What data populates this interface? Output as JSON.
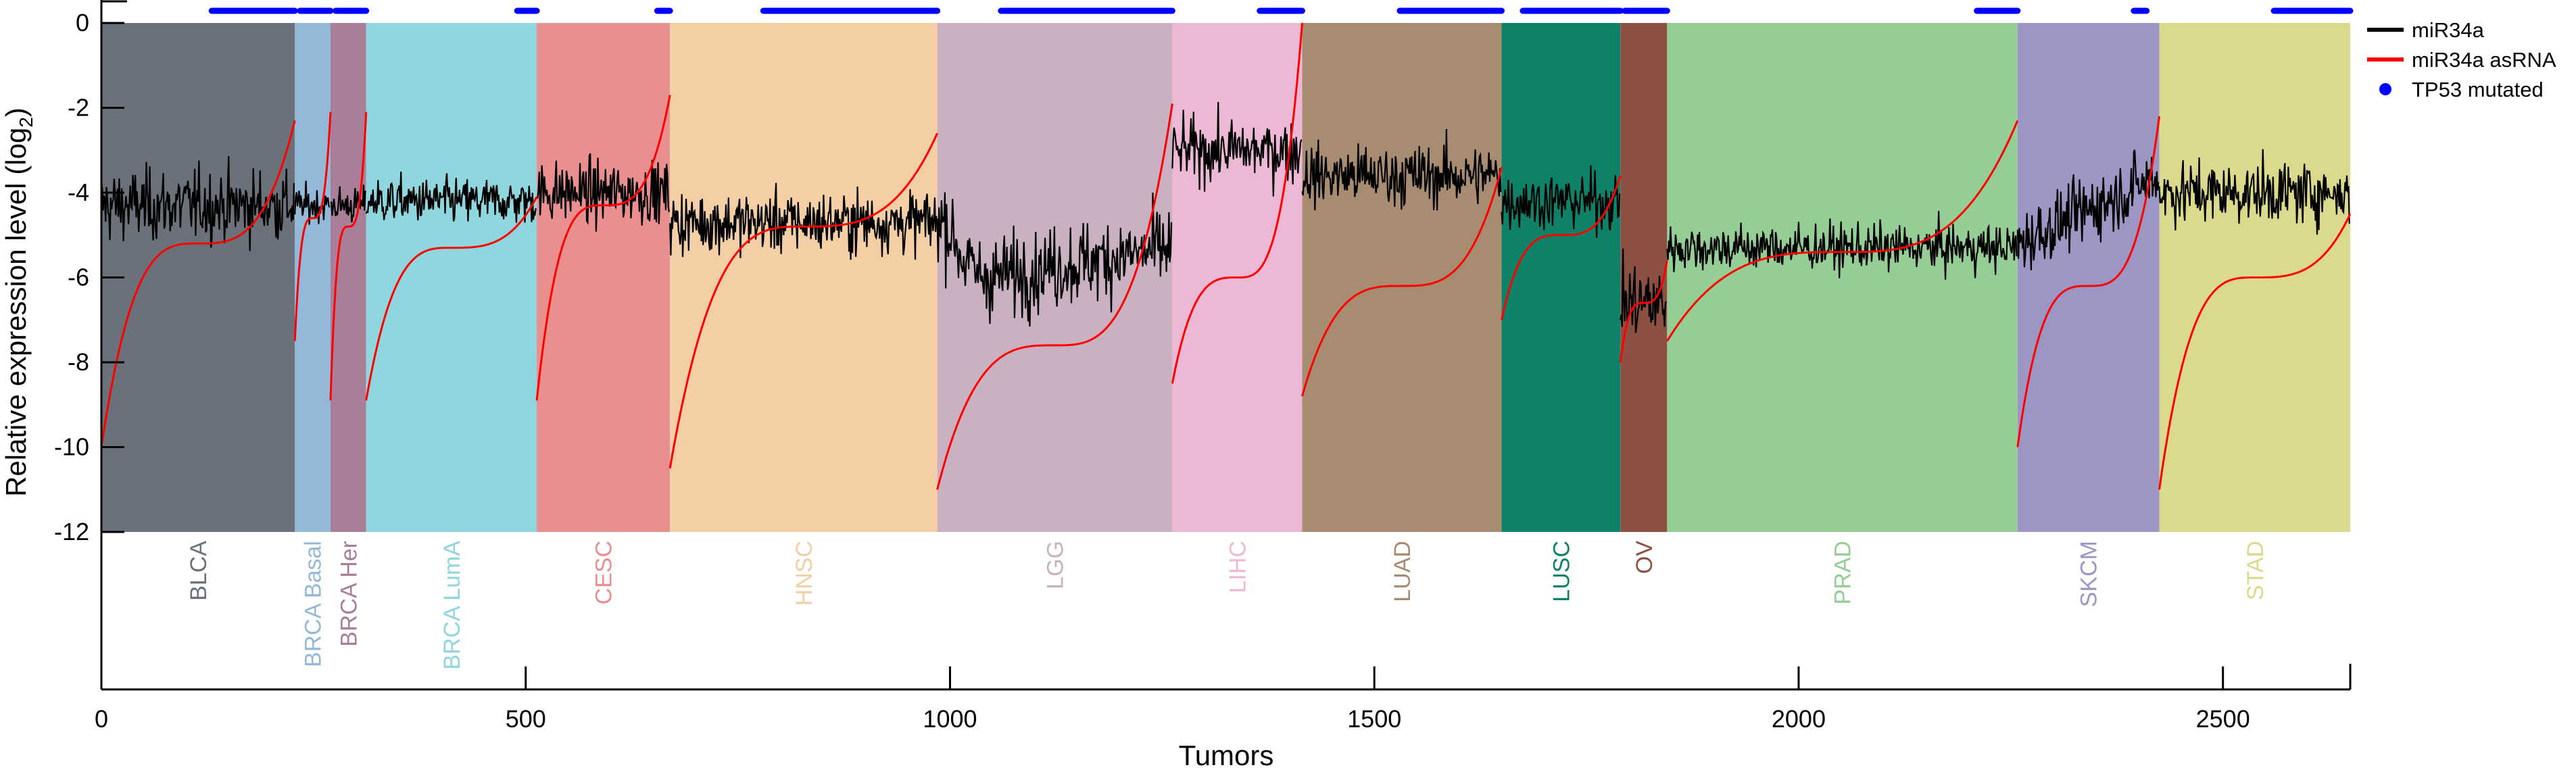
{
  "chart_data": {
    "type": "line",
    "xlabel": "Tumors",
    "ylabel": "Relative expression level (log",
    "ylabel_sub": "2",
    "ylabel_close": ")",
    "xlim": [
      0,
      2650
    ],
    "ylim": [
      -12,
      0
    ],
    "xticks": [
      0,
      500,
      1000,
      1500,
      2000,
      2500
    ],
    "yticks": [
      0,
      -2,
      -4,
      -6,
      -8,
      -10,
      -12
    ],
    "grid": false,
    "legend_position": "top-right outside",
    "legend": [
      {
        "label": "miR34a",
        "color": "#000000",
        "kind": "line"
      },
      {
        "label": "miR34a asRNA",
        "color": "#ff0000",
        "kind": "line"
      },
      {
        "label": "TP53 mutated",
        "color": "#0000ff",
        "kind": "dot"
      }
    ],
    "cancer_types": [
      {
        "name": "BLCA",
        "start": 0,
        "end": 228,
        "color": "#6a717a",
        "mir_mean": -4.3,
        "mir_noise": 0.7,
        "as_min": -10.0,
        "as_max": -2.3,
        "as_mid": -5.2
      },
      {
        "name": "BRCA Basal",
        "start": 228,
        "end": 270,
        "color": "#93b8d8",
        "mir_mean": -4.3,
        "mir_noise": 0.35,
        "as_min": -7.5,
        "as_max": -2.1,
        "as_mid": -4.6
      },
      {
        "name": "BRCA Her",
        "start": 270,
        "end": 312,
        "color": "#a97e98",
        "mir_mean": -4.3,
        "mir_noise": 0.35,
        "as_min": -8.9,
        "as_max": -2.1,
        "as_mid": -4.8
      },
      {
        "name": "BRCA LumA",
        "start": 312,
        "end": 513,
        "color": "#8fd6de",
        "mir_mean": -4.2,
        "mir_noise": 0.45,
        "as_min": -8.9,
        "as_max": -4.1,
        "as_mid": -5.3
      },
      {
        "name": "CESC",
        "start": 513,
        "end": 670,
        "color": "#e98f8f",
        "mir_mean": -4.0,
        "mir_noise": 0.6,
        "as_min": -8.9,
        "as_max": -1.7,
        "as_mid": -4.3
      },
      {
        "name": "HNSC",
        "start": 670,
        "end": 985,
        "color": "#f4cea4",
        "mir_mean": -4.7,
        "mir_noise": 0.6,
        "as_min": -10.5,
        "as_max": -2.6,
        "as_mid": -4.8
      },
      {
        "name": "LGG",
        "start": 985,
        "end": 1262,
        "color": "#c9b1c2",
        "mir_mean": -6.2,
        "mir_noise": 0.8,
        "as_min": -11.0,
        "as_max": -1.9,
        "as_mid": -7.6
      },
      {
        "name": "LIHC",
        "start": 1262,
        "end": 1415,
        "color": "#ecb8d6",
        "mir_mean": -3.0,
        "mir_noise": 0.6,
        "as_min": -8.5,
        "as_max": 0.0,
        "as_mid": -6.0
      },
      {
        "name": "LUAD",
        "start": 1415,
        "end": 1650,
        "color": "#a88c72",
        "mir_mean": -3.6,
        "mir_noise": 0.6,
        "as_min": -8.8,
        "as_max": -3.4,
        "as_mid": -6.2
      },
      {
        "name": "LUSC",
        "start": 1650,
        "end": 1790,
        "color": "#0e8268",
        "mir_mean": -4.2,
        "mir_noise": 0.55,
        "as_min": -7.0,
        "as_max": -3.6,
        "as_mid": -5.0
      },
      {
        "name": "OV",
        "start": 1790,
        "end": 1845,
        "color": "#8c5042",
        "mir_mean": -6.6,
        "mir_noise": 0.8,
        "as_min": -8.0,
        "as_max": -5.6,
        "as_mid": -6.6
      },
      {
        "name": "PRAD",
        "start": 1845,
        "end": 2258,
        "color": "#95ce94",
        "mir_mean": -5.3,
        "mir_noise": 0.45,
        "as_min": -7.5,
        "as_max": -2.3,
        "as_mid": -5.4
      },
      {
        "name": "SKCM",
        "start": 2258,
        "end": 2425,
        "color": "#9b96c3",
        "mir_mean": -4.0,
        "mir_noise": 0.65,
        "as_min": -10.0,
        "as_max": -2.2,
        "as_mid": -6.2
      },
      {
        "name": "STAD",
        "start": 2425,
        "end": 2650,
        "color": "#dbd98c",
        "mir_mean": -4.0,
        "mir_noise": 0.6,
        "as_min": -11.0,
        "as_max": -4.5,
        "as_mid": -6.0
      }
    ],
    "tp53_mutated_ranges": [
      [
        130,
        228
      ],
      [
        234,
        270
      ],
      [
        276,
        312
      ],
      [
        490,
        513
      ],
      [
        655,
        670
      ],
      [
        780,
        985
      ],
      [
        1060,
        1262
      ],
      [
        1365,
        1415
      ],
      [
        1530,
        1650
      ],
      [
        1675,
        1790
      ],
      [
        1795,
        1845
      ],
      [
        2210,
        2258
      ],
      [
        2395,
        2410
      ],
      [
        2560,
        2650
      ]
    ]
  }
}
